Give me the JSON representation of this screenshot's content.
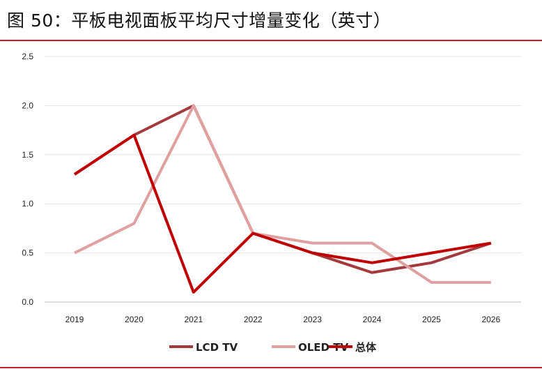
{
  "title": "图 50：平板电视面板平均尺寸增量变化（英寸）",
  "chart_data": {
    "type": "line",
    "title": "图 50：平板电视面板平均尺寸增量变化（英寸）",
    "x": [
      "2019",
      "2020",
      "2021",
      "2022",
      "2023",
      "2024",
      "2025",
      "2026"
    ],
    "yticks": [
      "0.0",
      "0.5",
      "1.0",
      "1.5",
      "2.0",
      "2.5"
    ],
    "ylim": [
      0,
      2.5
    ],
    "grid": true,
    "legend_position": "bottom",
    "series": [
      {
        "name": "LCD TV",
        "color": "#a33a3e",
        "values": [
          1.3,
          1.7,
          2.0,
          0.7,
          0.5,
          0.3,
          0.4,
          0.6
        ]
      },
      {
        "name": "OLED TV",
        "color": "#e0a0a0",
        "values": [
          0.5,
          0.8,
          2.0,
          0.7,
          0.6,
          0.6,
          0.2,
          0.2
        ]
      },
      {
        "name": "总体",
        "color": "#c00000",
        "values": [
          1.3,
          1.7,
          0.1,
          0.7,
          0.5,
          0.4,
          0.5,
          0.6
        ]
      }
    ]
  }
}
